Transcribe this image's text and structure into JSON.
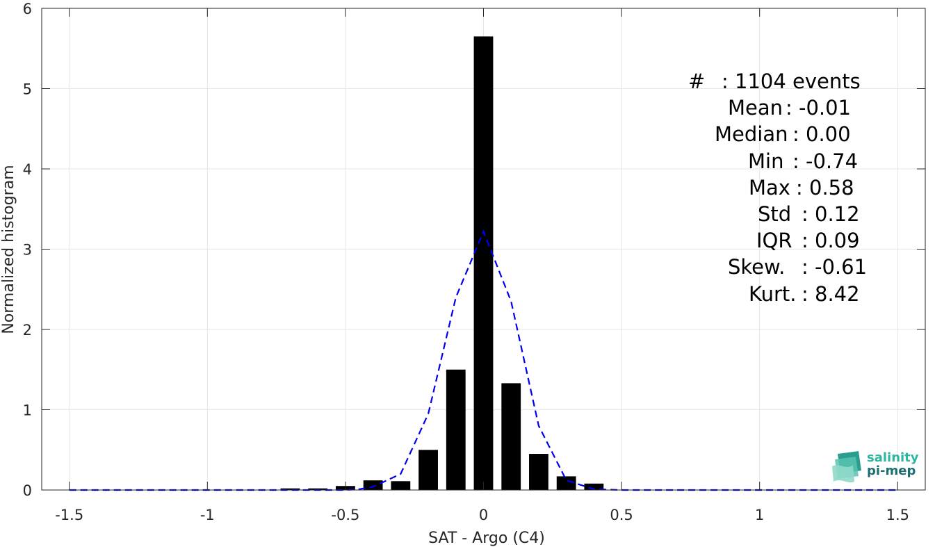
{
  "chart_data": {
    "type": "bar",
    "xlabel": "SAT - Argo (C4)",
    "ylabel": "Normalized histogram",
    "xlim": [
      -1.6,
      1.6
    ],
    "ylim": [
      0,
      6
    ],
    "x_ticks": [
      -1.5,
      -1,
      -0.5,
      0,
      0.5,
      1,
      1.5
    ],
    "x_tick_labels": [
      "-1.5",
      "-1",
      "-0.5",
      "0",
      "0.5",
      "1",
      "1.5"
    ],
    "y_ticks": [
      0,
      1,
      2,
      3,
      4,
      5,
      6
    ],
    "y_tick_labels": [
      "0",
      "1",
      "2",
      "3",
      "4",
      "5",
      "6"
    ],
    "grid": true,
    "bar_width": 0.07,
    "bar_color": "#000000",
    "bars": {
      "x": [
        -0.7,
        -0.6,
        -0.5,
        -0.4,
        -0.3,
        -0.2,
        -0.1,
        0.0,
        0.1,
        0.2,
        0.3,
        0.4
      ],
      "values": [
        0.02,
        0.02,
        0.05,
        0.12,
        0.11,
        0.5,
        1.5,
        5.65,
        1.33,
        0.45,
        0.17,
        0.08
      ]
    },
    "fit_curve": {
      "color": "#0000ee",
      "style": "dashed",
      "x": [
        -1.5,
        -1.4,
        -1.3,
        -1.2,
        -1.1,
        -1.0,
        -0.9,
        -0.8,
        -0.7,
        -0.6,
        -0.5,
        -0.45,
        -0.4,
        -0.3,
        -0.2,
        -0.1,
        0.0,
        0.1,
        0.2,
        0.3,
        0.4,
        0.5,
        0.6,
        0.7,
        0.8,
        0.9,
        1.0,
        1.1,
        1.2,
        1.3,
        1.4,
        1.5
      ],
      "y": [
        0,
        0,
        0,
        0,
        0,
        0,
        0,
        0,
        0,
        0,
        0.0,
        0.01,
        0.04,
        0.2,
        0.95,
        2.4,
        3.22,
        2.35,
        0.8,
        0.12,
        0.01,
        0,
        0,
        0,
        0,
        0,
        0,
        0,
        0,
        0,
        0,
        0
      ]
    }
  },
  "stats": [
    {
      "label": "#  ",
      "value": ": 1104 events"
    },
    {
      "label": "Mean ",
      "value": ": -0.01"
    },
    {
      "label": "Median ",
      "value": ": 0.00"
    },
    {
      "label": "Min ",
      "value": ": -0.74"
    },
    {
      "label": "Max ",
      "value": ": 0.58"
    },
    {
      "label": "Std ",
      "value": ": 0.12"
    },
    {
      "label": "IQR ",
      "value": ": 0.09"
    },
    {
      "label": "Skew. ",
      "value": ": -0.61"
    },
    {
      "label": "Kurt. ",
      "value": ": 8.42"
    }
  ],
  "logo": {
    "line1": "salinity",
    "line2": "pi-mep",
    "color1": "#2db5a0",
    "color2": "#1c6f73"
  }
}
